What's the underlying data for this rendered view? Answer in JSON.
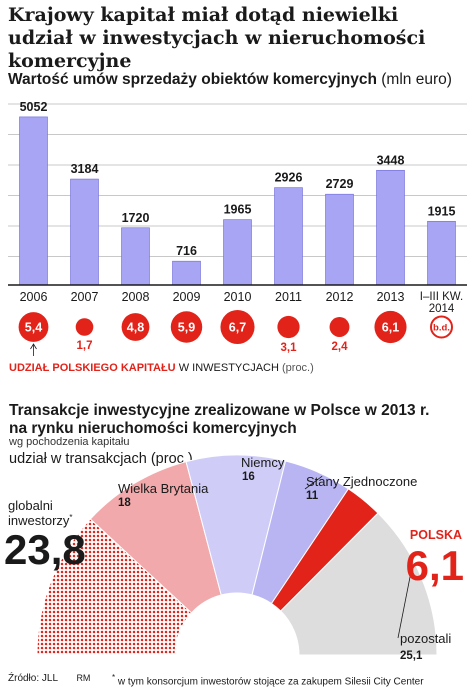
{
  "title": "Krajowy kapitał miał dotąd niewielki udział w inwestycjach w nieruchomości komercyjne",
  "colors": {
    "bar": "#a8a5f5",
    "bar_stroke": "#6e69d6",
    "red": "#e2231a",
    "pink": "#f2a9ab",
    "lavender": "#cfcdf7",
    "lavender_dark": "#b8b5f2",
    "gray": "#dddddd",
    "grid": "#c8c8c8"
  },
  "chart_data": [
    {
      "type": "bar",
      "title": "Wartość umów sprzedaży obiektów komercyjnych",
      "unit": "(mln euro)",
      "categories": [
        "2006",
        "2007",
        "2008",
        "2009",
        "2010",
        "2011",
        "2012",
        "2013",
        "I–III KW. 2014"
      ],
      "values": [
        5052,
        3184,
        1720,
        716,
        1965,
        2926,
        2729,
        3448,
        1915
      ],
      "ylim": [
        0,
        5500
      ],
      "grid": true,
      "domestic_share": {
        "label_red": "UDZIAŁ POLSKIEGO KAPITAŁU",
        "label_rest": "W INWESTYCJACH",
        "label_unit": "(proc.)",
        "values": [
          5.4,
          1.7,
          4.8,
          5.9,
          6.7,
          3.1,
          2.4,
          6.1,
          null
        ],
        "labels": [
          "5,4",
          "1,7",
          "4,8",
          "5,9",
          "6,7",
          "3,1",
          "2,4",
          "6,1",
          "b.d."
        ]
      }
    },
    {
      "type": "pie",
      "title": "Transakcje inwestycyjne zrealizowane w Polsce w 2013 r. na rynku nieruchomości komercyjnych",
      "subtitle": "wg pochodzenia kapitału",
      "value_label": "udział w transakcjach (proc.)",
      "slices": [
        {
          "name": "globalni inwestorzy",
          "mark": "*",
          "value": 23.8,
          "label": "23,8",
          "color": "#e2231a",
          "pattern": "dots"
        },
        {
          "name": "Wielka Brytania",
          "value": 18,
          "label": "18",
          "color": "#f2a9ab"
        },
        {
          "name": "Niemcy",
          "value": 16,
          "label": "16",
          "color": "#cfcdf7"
        },
        {
          "name": "Stany Zjednoczone",
          "value": 11,
          "label": "11",
          "color": "#b8b5f2"
        },
        {
          "name": "POLSKA",
          "value": 6.1,
          "label": "6,1",
          "color": "#e2231a"
        },
        {
          "name": "pozostali",
          "value": 25.1,
          "label": "25,1",
          "color": "#dddddd"
        }
      ]
    }
  ],
  "source": {
    "label": "Źródło: JLL",
    "author": "RM"
  },
  "footnote": {
    "mark": "*",
    "text": "w tym konsorcjum inwestorów stojące za zakupem Silesii City Center"
  }
}
